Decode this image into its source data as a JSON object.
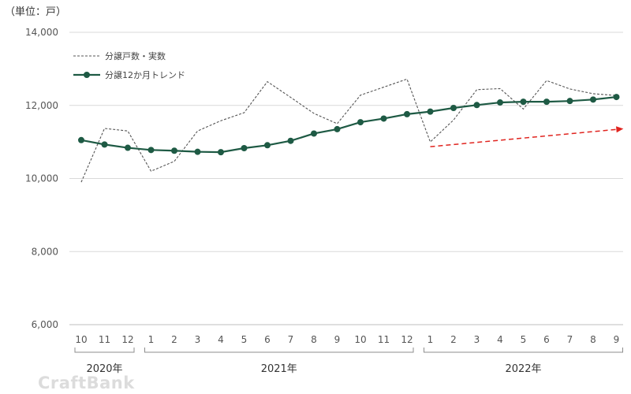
{
  "chart_data": {
    "type": "line",
    "unit_label": "（単位：戸）",
    "categories": [
      "10",
      "11",
      "12",
      "1",
      "2",
      "3",
      "4",
      "5",
      "6",
      "7",
      "8",
      "9",
      "10",
      "11",
      "12",
      "1",
      "2",
      "3",
      "4",
      "5",
      "6",
      "7",
      "8",
      "9"
    ],
    "year_groups": [
      {
        "label": "2020年",
        "months": [
          "10",
          "11",
          "12"
        ]
      },
      {
        "label": "2021年",
        "months": [
          "1",
          "2",
          "3",
          "4",
          "5",
          "6",
          "7",
          "8",
          "9",
          "10",
          "11",
          "12"
        ]
      },
      {
        "label": "2022年",
        "months": [
          "1",
          "2",
          "3",
          "4",
          "5",
          "6",
          "7",
          "8",
          "9"
        ]
      }
    ],
    "ylim": [
      6000,
      14000
    ],
    "yticks": [
      6000,
      8000,
      10000,
      12000,
      14000
    ],
    "ytick_labels": [
      "6,000",
      "8,000",
      "10,000",
      "12,000",
      "14,000"
    ],
    "grid": true,
    "legend_position": "top-left",
    "series": [
      {
        "name": "分譲戸数・実数",
        "style": "dashed",
        "color": "#555555",
        "values": [
          9900,
          11370,
          11300,
          10200,
          10470,
          11300,
          11580,
          11800,
          12650,
          12220,
          11780,
          11500,
          12280,
          12500,
          12720,
          11000,
          11600,
          12430,
          12460,
          11900,
          12680,
          12450,
          12320,
          12270
        ]
      },
      {
        "name": "分譲12か月トレンド",
        "style": "solid-markers",
        "color": "#1e5a44",
        "values": [
          11050,
          10930,
          10840,
          10780,
          10760,
          10730,
          10720,
          10830,
          10910,
          11030,
          11230,
          11350,
          11540,
          11640,
          11760,
          11830,
          11930,
          12010,
          12080,
          12100,
          12100,
          12120,
          12160,
          12230
        ]
      }
    ],
    "annotations": [
      {
        "type": "arrow",
        "style": "dashed",
        "color": "#e0241f",
        "from": {
          "index": 15,
          "value": 10870
        },
        "to": {
          "index": 23.3,
          "value": 11360
        }
      }
    ]
  },
  "watermark": "CraftBank"
}
